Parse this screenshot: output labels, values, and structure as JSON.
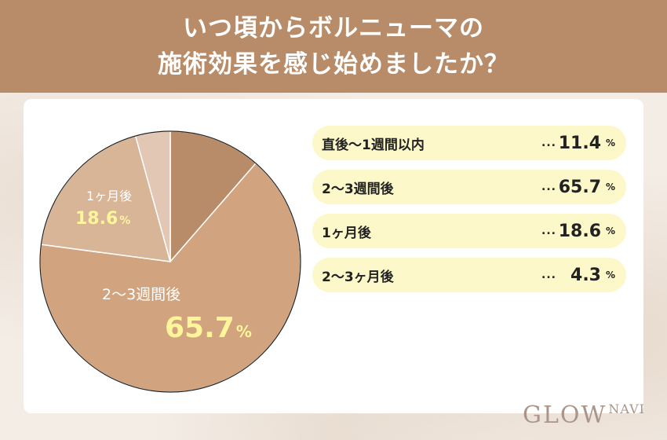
{
  "header": {
    "line1": "いつ頃からボルニューマの",
    "line2": "施術効果を感じ始めましたか？"
  },
  "chart_data": {
    "type": "pie",
    "unit": "%",
    "categories": [
      "直後〜1週間以内",
      "2〜3週間後",
      "1ヶ月後",
      "2〜3ヶ月後"
    ],
    "values": [
      11.4,
      65.7,
      18.6,
      4.3
    ],
    "display_values": [
      "11.4",
      "65.7",
      "18.6",
      "4.3"
    ],
    "colors": [
      "#b88c68",
      "#d1a37e",
      "#d8b597",
      "#e2c7b4"
    ],
    "legend_placement": "right"
  },
  "pie_labels": {
    "one_month": {
      "category": "1ヶ月後",
      "value": "18.6",
      "unit": "%"
    },
    "two_three_weeks": {
      "category": "2〜3週間後",
      "value": "65.7",
      "unit": "%"
    }
  },
  "legend": {
    "dots": "...",
    "unit": "%",
    "items": [
      {
        "category": "直後〜1週間以内",
        "value": "11.4"
      },
      {
        "category": "2〜3週間後",
        "value": "65.7"
      },
      {
        "category": "1ヶ月後",
        "value": "18.6"
      },
      {
        "category": "2〜3ヶ月後",
        "value": "4.3"
      }
    ]
  },
  "logo": {
    "main": "GLOW",
    "small": "NAVI"
  }
}
